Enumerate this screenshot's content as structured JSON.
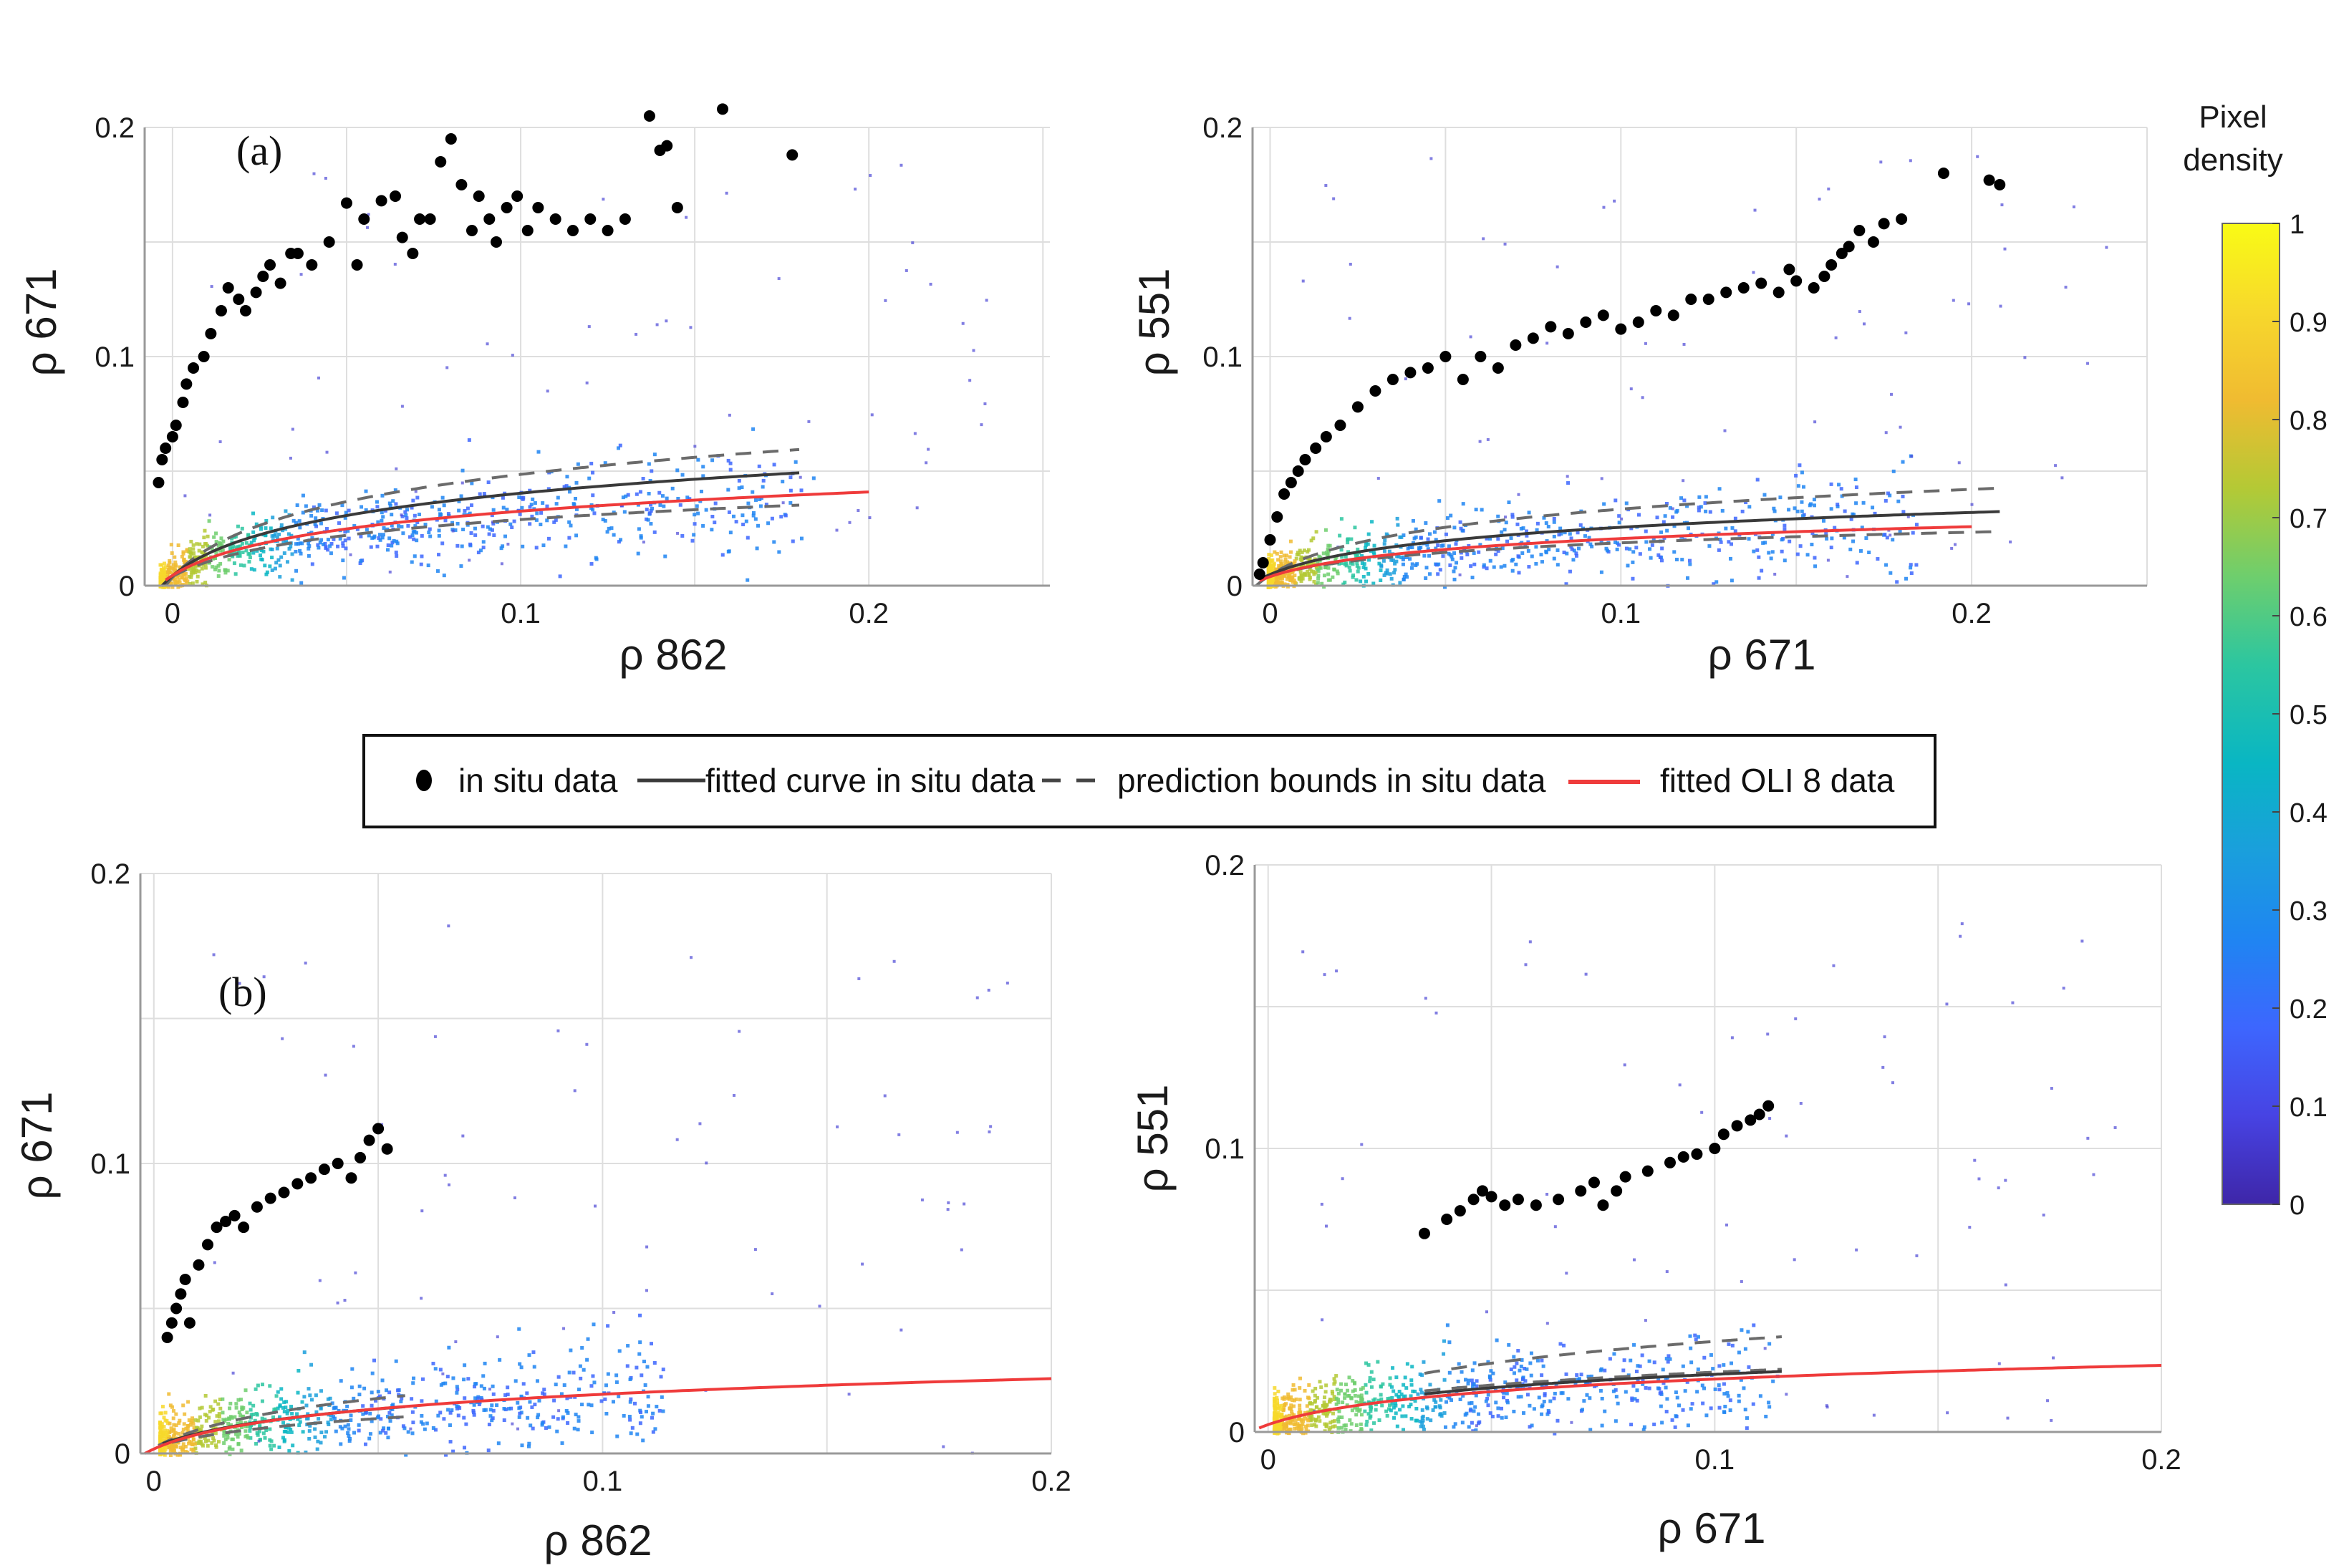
{
  "chart_data": {
    "type": "scatter",
    "panels": [
      {
        "label": "(a)",
        "xlabel": "ρ 862",
        "ylabel": "ρ 671",
        "xlim": [
          -0.008,
          0.252
        ],
        "ylim": [
          0,
          0.2
        ],
        "xticks": [
          0,
          0.1,
          0.2
        ],
        "xtick_labels": [
          "0",
          "0.1",
          "0.2"
        ],
        "yticks": [
          0,
          0.1,
          0.2
        ],
        "ytick_labels": [
          "0",
          "0.1",
          "0.2"
        ],
        "grid_step_x": 0.05,
        "grid_step_y": 0.05,
        "fitted_in_situ": {
          "a": 0.04,
          "b": 1.2,
          "x0": 0.003,
          "x_range": [
            -0.003,
            0.18
          ]
        },
        "upper_bound": {
          "a": 0.04,
          "b": 1.45,
          "x0": 0.002,
          "x_range": [
            -0.003,
            0.18
          ]
        },
        "lower_bound": {
          "a": 0.036,
          "b": 0.95,
          "x0": 0.004,
          "x_range": [
            0.0,
            0.18
          ]
        },
        "fitted_oli8": {
          "a": 0.036,
          "b": 1.07,
          "x0": 0.004,
          "x_range": [
            -0.002,
            0.2
          ]
        },
        "in_situ": [
          [
            -0.004,
            0.045
          ],
          [
            -0.003,
            0.055
          ],
          [
            -0.002,
            0.06
          ],
          [
            0.0,
            0.065
          ],
          [
            0.001,
            0.07
          ],
          [
            0.003,
            0.08
          ],
          [
            0.004,
            0.088
          ],
          [
            0.006,
            0.095
          ],
          [
            0.009,
            0.1
          ],
          [
            0.011,
            0.11
          ],
          [
            0.014,
            0.12
          ],
          [
            0.016,
            0.13
          ],
          [
            0.019,
            0.125
          ],
          [
            0.021,
            0.12
          ],
          [
            0.024,
            0.128
          ],
          [
            0.026,
            0.135
          ],
          [
            0.028,
            0.14
          ],
          [
            0.031,
            0.132
          ],
          [
            0.034,
            0.145
          ],
          [
            0.036,
            0.145
          ],
          [
            0.04,
            0.14
          ],
          [
            0.045,
            0.15
          ],
          [
            0.05,
            0.167
          ],
          [
            0.053,
            0.14
          ],
          [
            0.055,
            0.16
          ],
          [
            0.06,
            0.168
          ],
          [
            0.064,
            0.17
          ],
          [
            0.066,
            0.152
          ],
          [
            0.069,
            0.145
          ],
          [
            0.071,
            0.16
          ],
          [
            0.074,
            0.16
          ],
          [
            0.077,
            0.185
          ],
          [
            0.08,
            0.195
          ],
          [
            0.083,
            0.175
          ],
          [
            0.086,
            0.155
          ],
          [
            0.088,
            0.17
          ],
          [
            0.091,
            0.16
          ],
          [
            0.093,
            0.15
          ],
          [
            0.096,
            0.165
          ],
          [
            0.099,
            0.17
          ],
          [
            0.102,
            0.155
          ],
          [
            0.105,
            0.165
          ],
          [
            0.11,
            0.16
          ],
          [
            0.115,
            0.155
          ],
          [
            0.12,
            0.16
          ],
          [
            0.125,
            0.155
          ],
          [
            0.13,
            0.16
          ],
          [
            0.137,
            0.205
          ],
          [
            0.14,
            0.19
          ],
          [
            0.142,
            0.192
          ],
          [
            0.145,
            0.165
          ],
          [
            0.158,
            0.208
          ],
          [
            0.178,
            0.188
          ]
        ],
        "legend": null
      },
      {
        "label": "",
        "xlabel": "ρ 671",
        "ylabel": "ρ 551",
        "xlim": [
          -0.005,
          0.25
        ],
        "ylim": [
          0,
          0.2
        ],
        "xticks": [
          0,
          0.1,
          0.2
        ],
        "xtick_labels": [
          "0",
          "0.1",
          "0.2"
        ],
        "yticks": [
          0,
          0.1,
          0.2
        ],
        "ytick_labels": [
          "0",
          "0.1",
          "0.2"
        ],
        "grid_step_x": 0.05,
        "grid_step_y": 0.05,
        "fitted_in_situ": {
          "a": 0.03,
          "b": 1.0,
          "x0": 0.006,
          "x_range": [
            -0.003,
            0.208
          ]
        },
        "upper_bound": {
          "a": 0.033,
          "b": 1.2,
          "x0": 0.004,
          "x_range": [
            -0.004,
            0.208
          ]
        },
        "lower_bound": {
          "a": 0.028,
          "b": 0.78,
          "x0": 0.008,
          "x_range": [
            0.0,
            0.208
          ]
        },
        "fitted_oli8": {
          "a": 0.026,
          "b": 0.93,
          "x0": 0.006,
          "x_range": [
            -0.003,
            0.2
          ]
        },
        "in_situ": [
          [
            -0.003,
            0.005
          ],
          [
            -0.002,
            0.01
          ],
          [
            0.0,
            0.02
          ],
          [
            0.002,
            0.03
          ],
          [
            0.004,
            0.04
          ],
          [
            0.006,
            0.045
          ],
          [
            0.008,
            0.05
          ],
          [
            0.01,
            0.055
          ],
          [
            0.013,
            0.06
          ],
          [
            0.016,
            0.065
          ],
          [
            0.02,
            0.07
          ],
          [
            0.025,
            0.078
          ],
          [
            0.03,
            0.085
          ],
          [
            0.035,
            0.09
          ],
          [
            0.04,
            0.093
          ],
          [
            0.045,
            0.095
          ],
          [
            0.05,
            0.1
          ],
          [
            0.055,
            0.09
          ],
          [
            0.06,
            0.1
          ],
          [
            0.065,
            0.095
          ],
          [
            0.07,
            0.105
          ],
          [
            0.075,
            0.108
          ],
          [
            0.08,
            0.113
          ],
          [
            0.085,
            0.11
          ],
          [
            0.09,
            0.115
          ],
          [
            0.095,
            0.118
          ],
          [
            0.1,
            0.112
          ],
          [
            0.105,
            0.115
          ],
          [
            0.11,
            0.12
          ],
          [
            0.115,
            0.118
          ],
          [
            0.12,
            0.125
          ],
          [
            0.125,
            0.125
          ],
          [
            0.13,
            0.128
          ],
          [
            0.135,
            0.13
          ],
          [
            0.14,
            0.132
          ],
          [
            0.145,
            0.128
          ],
          [
            0.148,
            0.138
          ],
          [
            0.15,
            0.133
          ],
          [
            0.155,
            0.13
          ],
          [
            0.158,
            0.135
          ],
          [
            0.16,
            0.14
          ],
          [
            0.163,
            0.145
          ],
          [
            0.165,
            0.148
          ],
          [
            0.168,
            0.155
          ],
          [
            0.172,
            0.15
          ],
          [
            0.175,
            0.158
          ],
          [
            0.18,
            0.16
          ],
          [
            0.192,
            0.18
          ],
          [
            0.205,
            0.177
          ],
          [
            0.208,
            0.175
          ]
        ],
        "legend": null
      },
      {
        "label": "(b)",
        "xlabel": "ρ 862",
        "ylabel": "ρ 671",
        "xlim": [
          -0.003,
          0.2
        ],
        "ylim": [
          0,
          0.2
        ],
        "xticks": [
          0,
          0.1,
          0.2
        ],
        "xtick_labels": [
          "0",
          "0.1",
          "0.2"
        ],
        "yticks": [
          0,
          0.1,
          0.2
        ],
        "ytick_labels": [
          "0",
          "0.1",
          "0.2"
        ],
        "grid_step_x": 0.05,
        "grid_step_y": 0.05,
        "fitted_in_situ": {
          "a": 0.028,
          "b": 0.86,
          "x0": 0.003,
          "x_range": [
            0.002,
            0.056
          ]
        },
        "upper_bound": {
          "a": 0.03,
          "b": 1.0,
          "x0": 0.002,
          "x_range": [
            0.001,
            0.056
          ]
        },
        "lower_bound": {
          "a": 0.026,
          "b": 0.72,
          "x0": 0.004,
          "x_range": [
            0.004,
            0.056
          ]
        },
        "fitted_oli8": {
          "a": 0.028,
          "b": 0.87,
          "x0": 0.002,
          "x_range": [
            -0.002,
            0.2
          ]
        },
        "in_situ": [
          [
            0.003,
            0.04
          ],
          [
            0.004,
            0.045
          ],
          [
            0.005,
            0.05
          ],
          [
            0.006,
            0.055
          ],
          [
            0.007,
            0.06
          ],
          [
            0.008,
            0.045
          ],
          [
            0.01,
            0.065
          ],
          [
            0.012,
            0.072
          ],
          [
            0.014,
            0.078
          ],
          [
            0.016,
            0.08
          ],
          [
            0.018,
            0.082
          ],
          [
            0.02,
            0.078
          ],
          [
            0.023,
            0.085
          ],
          [
            0.026,
            0.088
          ],
          [
            0.029,
            0.09
          ],
          [
            0.032,
            0.093
          ],
          [
            0.035,
            0.095
          ],
          [
            0.038,
            0.098
          ],
          [
            0.041,
            0.1
          ],
          [
            0.044,
            0.095
          ],
          [
            0.046,
            0.102
          ],
          [
            0.048,
            0.108
          ],
          [
            0.05,
            0.112
          ],
          [
            0.052,
            0.105
          ]
        ],
        "legend": null
      },
      {
        "label": "",
        "xlabel": "ρ 671",
        "ylabel": "ρ 551",
        "xlim": [
          -0.003,
          0.2
        ],
        "ylim": [
          0,
          0.2
        ],
        "xticks": [
          0,
          0.1,
          0.2
        ],
        "xtick_labels": [
          "0",
          "0.1",
          "0.2"
        ],
        "yticks": [
          0,
          0.1,
          0.2
        ],
        "ytick_labels": [
          "0",
          "0.1",
          "0.2"
        ],
        "grid_step_x": 0.05,
        "grid_step_y": 0.05,
        "fitted_in_situ": {
          "a": 0.03,
          "b": 0.8,
          "x0": 0.005,
          "x_range": [
            0.035,
            0.115
          ]
        },
        "upper_bound": {
          "a": 0.04,
          "b": 0.95,
          "x0": 0.003,
          "x_range": [
            0.035,
            0.115
          ]
        },
        "lower_bound": {
          "a": 0.035,
          "b": 0.7,
          "x0": 0.01,
          "x_range": [
            0.035,
            0.115
          ]
        },
        "fitted_oli8": {
          "a": 0.028,
          "b": 0.79,
          "x0": 0.004,
          "x_range": [
            -0.002,
            0.2
          ]
        },
        "in_situ": [
          [
            0.035,
            0.07
          ],
          [
            0.04,
            0.075
          ],
          [
            0.043,
            0.078
          ],
          [
            0.046,
            0.082
          ],
          [
            0.048,
            0.085
          ],
          [
            0.05,
            0.083
          ],
          [
            0.053,
            0.08
          ],
          [
            0.056,
            0.082
          ],
          [
            0.06,
            0.08
          ],
          [
            0.065,
            0.082
          ],
          [
            0.07,
            0.085
          ],
          [
            0.073,
            0.088
          ],
          [
            0.075,
            0.08
          ],
          [
            0.078,
            0.085
          ],
          [
            0.08,
            0.09
          ],
          [
            0.085,
            0.092
          ],
          [
            0.09,
            0.095
          ],
          [
            0.093,
            0.097
          ],
          [
            0.096,
            0.098
          ],
          [
            0.1,
            0.1
          ],
          [
            0.102,
            0.105
          ],
          [
            0.105,
            0.108
          ],
          [
            0.108,
            0.11
          ],
          [
            0.11,
            0.112
          ],
          [
            0.112,
            0.115
          ]
        ],
        "legend": null
      }
    ],
    "legend": {
      "entries": [
        {
          "label": "in situ data",
          "marker": "dot"
        },
        {
          "label": "fitted curve in situ data",
          "style": "solid"
        },
        {
          "label": "prediction bounds in situ data",
          "style": "dashed"
        },
        {
          "label": "fitted OLI 8 data",
          "style": "red"
        }
      ],
      "position": "center"
    },
    "colorbar": {
      "title_line1": "Pixel",
      "title_line2": "density",
      "ticks": [
        0,
        0.1,
        0.2,
        0.3,
        0.4,
        0.5,
        0.6,
        0.7,
        0.8,
        0.9,
        1
      ],
      "tick_labels": [
        "0",
        "0.1",
        "0.2",
        "0.3",
        "0.4",
        "0.5",
        "0.6",
        "0.7",
        "0.8",
        "0.9",
        "1"
      ],
      "colormap": [
        "#3e26a8",
        "#4743e3",
        "#3d66fe",
        "#1f85f2",
        "#1a9fdc",
        "#09b6c3",
        "#2cc6a0",
        "#6ece6d",
        "#b4c935",
        "#f0bb31",
        "#f7d82c",
        "#f9fb15"
      ]
    },
    "colors": {
      "fit": "#3a3a3a",
      "bounds": "#6b6b6b",
      "oli": "#ef3b3b",
      "points": "#000000",
      "grid": "#dedede",
      "axes": "#999999"
    }
  }
}
